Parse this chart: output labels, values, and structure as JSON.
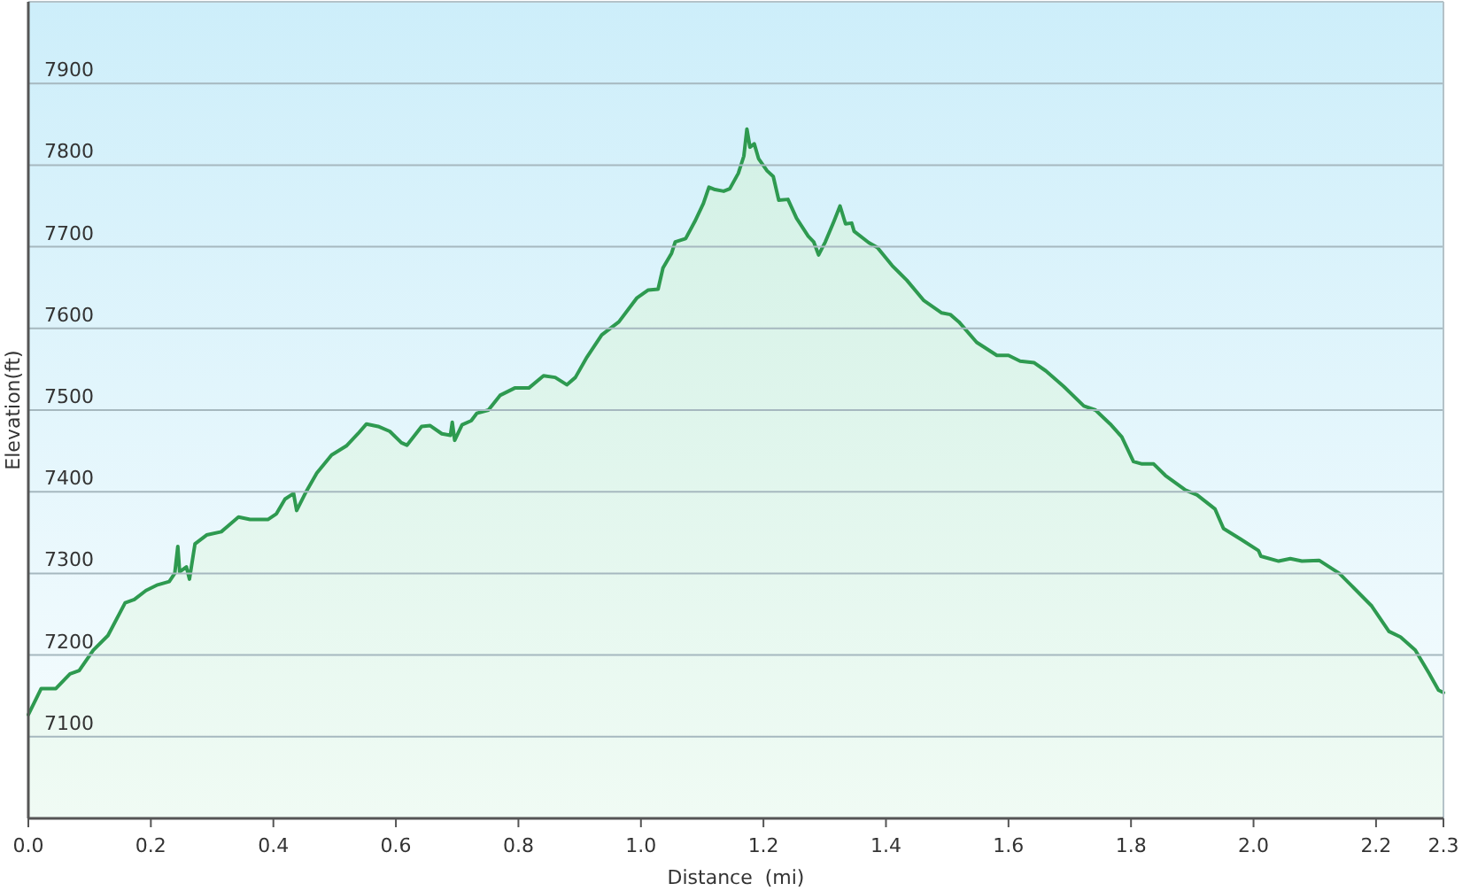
{
  "chart_data": {
    "type": "area",
    "xlabel": "Distance  (mi)",
    "ylabel": "Elevation(ft)",
    "color": "#2e9a50",
    "x": [
      0,
      0.021,
      0.045,
      0.068,
      0.083,
      0.106,
      0.13,
      0.158,
      0.173,
      0.192,
      0.211,
      0.23,
      0.239,
      0.244,
      0.247,
      0.258,
      0.263,
      0.272,
      0.291,
      0.315,
      0.343,
      0.362,
      0.391,
      0.405,
      0.419,
      0.433,
      0.438,
      0.452,
      0.471,
      0.495,
      0.519,
      0.538,
      0.552,
      0.571,
      0.59,
      0.609,
      0.618,
      0.642,
      0.656,
      0.675,
      0.689,
      0.692,
      0.696,
      0.708,
      0.723,
      0.732,
      0.751,
      0.77,
      0.794,
      0.817,
      0.841,
      0.86,
      0.879,
      0.893,
      0.912,
      0.936,
      0.964,
      0.993,
      1.012,
      1.028,
      1.036,
      1.05,
      1.056,
      1.073,
      1.088,
      1.102,
      1.111,
      1.121,
      1.135,
      1.145,
      1.159,
      1.168,
      1.173,
      1.178,
      1.185,
      1.192,
      1.206,
      1.216,
      1.225,
      1.24,
      1.254,
      1.273,
      1.282,
      1.29,
      1.301,
      1.315,
      1.325,
      1.334,
      1.344,
      1.348,
      1.372,
      1.386,
      1.41,
      1.434,
      1.462,
      1.491,
      1.505,
      1.519,
      1.548,
      1.581,
      1.6,
      1.619,
      1.642,
      1.661,
      1.69,
      1.723,
      1.742,
      1.766,
      1.785,
      1.804,
      1.818,
      1.837,
      1.856,
      1.889,
      1.908,
      1.937,
      1.951,
      1.979,
      2.008,
      2.012,
      2.041,
      2.06,
      2.079,
      2.107,
      2.14,
      2.164,
      2.193,
      2.221,
      2.24,
      2.264,
      2.287,
      2.302,
      2.31
    ],
    "values": [
      7127,
      7159,
      7159,
      7177,
      7181,
      7206,
      7224,
      7264,
      7268,
      7279,
      7286,
      7290,
      7300,
      7333,
      7302,
      7308,
      7293,
      7336,
      7347,
      7351,
      7369,
      7366,
      7366,
      7373,
      7391,
      7398,
      7377,
      7398,
      7423,
      7445,
      7456,
      7471,
      7483,
      7480,
      7474,
      7460,
      7457,
      7480,
      7481,
      7471,
      7469,
      7485,
      7463,
      7482,
      7487,
      7496,
      7500,
      7518,
      7527,
      7527,
      7542,
      7540,
      7531,
      7540,
      7565,
      7592,
      7608,
      7637,
      7647,
      7648,
      7674,
      7692,
      7706,
      7710,
      7731,
      7753,
      7773,
      7770,
      7768,
      7771,
      7790,
      7811,
      7844,
      7822,
      7826,
      7808,
      7793,
      7786,
      7757,
      7758,
      7735,
      7713,
      7706,
      7690,
      7706,
      7731,
      7750,
      7728,
      7729,
      7719,
      7705,
      7699,
      7677,
      7659,
      7634,
      7619,
      7617,
      7608,
      7583,
      7567,
      7567,
      7560,
      7558,
      7548,
      7529,
      7505,
      7500,
      7483,
      7467,
      7437,
      7434,
      7434,
      7420,
      7402,
      7396,
      7379,
      7355,
      7342,
      7328,
      7321,
      7315,
      7318,
      7315,
      7316,
      7300,
      7282,
      7260,
      7229,
      7222,
      7206,
      7177,
      7157,
      7154
    ],
    "xlim": [
      0,
      2.31
    ],
    "ylim": [
      7000,
      8000
    ],
    "xticks": [
      {
        "value": 0,
        "label": "0.0"
      },
      0.2,
      0.4,
      0.6,
      0.8,
      {
        "value": 1,
        "label": "1.0"
      },
      1.2,
      1.4,
      1.6,
      1.8,
      {
        "value": 2,
        "label": "2.0"
      },
      2.2,
      {
        "value": 2.31,
        "label": "2.3"
      }
    ],
    "yticks": [
      7100,
      7200,
      7300,
      7400,
      7500,
      7600,
      7700,
      7800,
      7900
    ],
    "grid": "y"
  }
}
